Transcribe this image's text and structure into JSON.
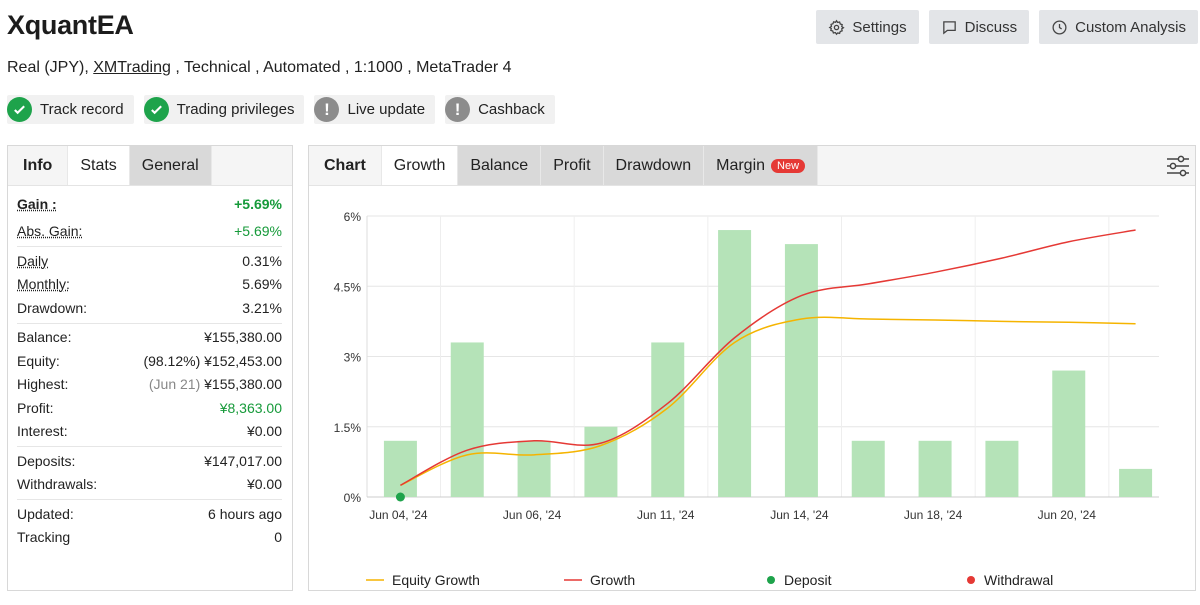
{
  "header": {
    "title": "XquantEA",
    "subtitle_pre": "Real (JPY), ",
    "broker_link": "XMTrading",
    "subtitle_post": " , Technical , Automated , 1:1000 , MetaTrader 4"
  },
  "actions": {
    "settings": "Settings",
    "discuss": "Discuss",
    "custom": "Custom Analysis"
  },
  "badges": [
    {
      "label": "Track record",
      "status": "verified"
    },
    {
      "label": "Trading privileges",
      "status": "verified"
    },
    {
      "label": "Live update",
      "status": "warning"
    },
    {
      "label": "Cashback",
      "status": "warning"
    }
  ],
  "left_tabs": {
    "info": "Info",
    "stats": "Stats",
    "general": "General"
  },
  "stats": {
    "gain_label": "Gain :",
    "gain_value": "+5.69%",
    "abs_gain_label": "Abs. Gain:",
    "abs_gain_value": "+5.69%",
    "daily_label": "Daily",
    "daily_value": "0.31%",
    "monthly_label": "Monthly:",
    "monthly_value": "5.69%",
    "drawdown_label": "Drawdown:",
    "drawdown_value": "3.21%",
    "balance_label": "Balance:",
    "balance_value": "¥155,380.00",
    "equity_label": "Equity:",
    "equity_pct": "(98.12%)",
    "equity_value": "¥152,453.00",
    "highest_label": "Highest:",
    "highest_date": "(Jun 21)",
    "highest_value": "¥155,380.00",
    "profit_label": "Profit:",
    "profit_value": "¥8,363.00",
    "interest_label": "Interest:",
    "interest_value": "¥0.00",
    "deposits_label": "Deposits:",
    "deposits_value": "¥147,017.00",
    "withdrawals_label": "Withdrawals:",
    "withdrawals_value": "¥0.00",
    "updated_label": "Updated:",
    "updated_value": "6 hours ago",
    "tracking_label": "Tracking",
    "tracking_value": "0"
  },
  "chart_tabs": {
    "chart": "Chart",
    "growth": "Growth",
    "balance": "Balance",
    "profit": "Profit",
    "drawdown": "Drawdown",
    "margin": "Margin",
    "new": "New"
  },
  "colors": {
    "equity_line": "#f5b400",
    "growth_line": "#e53935",
    "bar": "#b5e3b8",
    "deposit": "#1ea34b",
    "withdrawal": "#e53935"
  },
  "chart_data": {
    "type": "bar",
    "y_ticks": [
      "0%",
      "1.5%",
      "3%",
      "4.5%",
      "6%"
    ],
    "ylim": [
      0,
      6
    ],
    "x_tick_labels": [
      "Jun 04, '24",
      "Jun 06, '24",
      "Jun 11, '24",
      "Jun 14, '24",
      "Jun 18, '24",
      "Jun 20, '24"
    ],
    "bars": [
      1.2,
      3.3,
      1.2,
      1.5,
      3.3,
      5.7,
      5.4,
      1.2,
      1.2,
      1.2,
      2.7,
      0.6
    ],
    "series": [
      {
        "name": "Equity Growth",
        "values": [
          0.25,
          0.9,
          0.9,
          1.1,
          1.9,
          3.3,
          3.8,
          3.8,
          3.78,
          3.75,
          3.73,
          3.7
        ]
      },
      {
        "name": "Growth",
        "values": [
          0.25,
          1.0,
          1.2,
          1.15,
          2.0,
          3.4,
          4.3,
          4.55,
          4.8,
          5.1,
          5.45,
          5.7
        ]
      }
    ],
    "deposit_points": [
      {
        "index": 0,
        "value": 0
      }
    ],
    "legend": [
      "Equity Growth",
      "Growth",
      "Deposit",
      "Withdrawal"
    ]
  }
}
